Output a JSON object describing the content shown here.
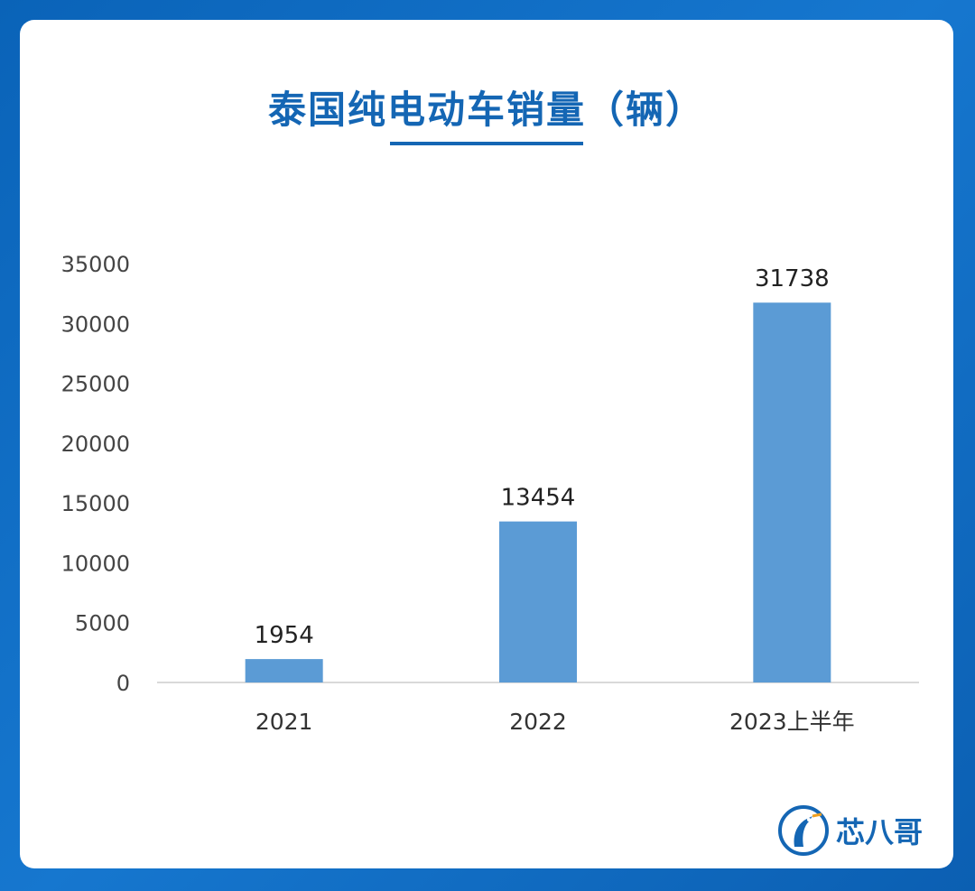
{
  "brand": {
    "name": "芯八哥",
    "bar_color": "#5b9bd5",
    "accent": "#1466b4"
  },
  "chart_data": {
    "type": "bar",
    "title": "泰国纯电动车销量（辆）",
    "categories": [
      "2021",
      "2022",
      "2023上半年"
    ],
    "values": [
      1954,
      13454,
      31738
    ],
    "ylim": [
      0,
      35000
    ],
    "yticks": [
      "0",
      "5000",
      "10000",
      "15000",
      "20000",
      "25000",
      "30000",
      "35000"
    ],
    "grid": false,
    "legend": "none"
  }
}
